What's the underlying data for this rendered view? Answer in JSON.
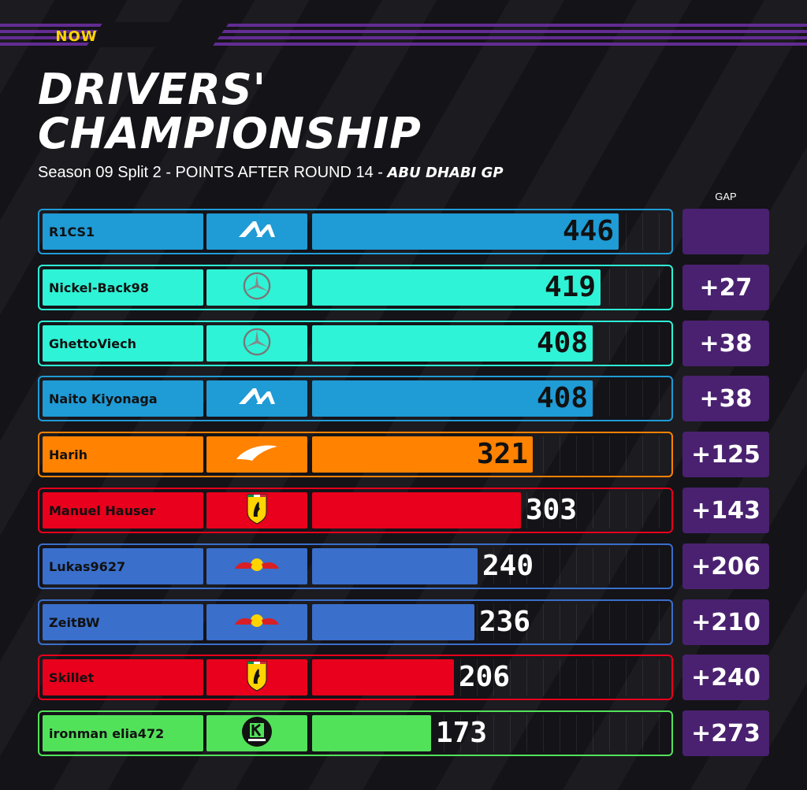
{
  "header": {
    "logo_text": "NOW",
    "title_line1": "DRIVERS'",
    "title_line2": "CHAMPIONSHIP",
    "subtitle_main": "Season 09 Split 2 - POINTS AFTER ROUND 14 - ",
    "subtitle_event": "ABU DHABI GP",
    "gap_label": "GAP"
  },
  "colors": {
    "alpine": "#1f9bd6",
    "mercedes": "#2ef3d6",
    "mclaren": "#ff8200",
    "ferrari": "#e8001c",
    "redbull": "#3a6fcb",
    "sauber": "#52e25a",
    "gap_bg": "#4a2170"
  },
  "chart_data": {
    "type": "bar",
    "orientation": "horizontal",
    "title": "DRIVERS' CHAMPIONSHIP",
    "subtitle": "Season 09 Split 2 - POINTS AFTER ROUND 14 - ABU DHABI GP",
    "xlim": [
      0,
      520
    ],
    "rows": [
      {
        "driver": "R1CS1",
        "team_icon": "alpine-logo-icon",
        "team": "alpine",
        "points": 446,
        "gap": ""
      },
      {
        "driver": "Nickel-Back98",
        "team_icon": "mercedes-star-icon",
        "team": "mercedes",
        "points": 419,
        "gap": "+27"
      },
      {
        "driver": "GhettoViech",
        "team_icon": "mercedes-star-icon",
        "team": "mercedes",
        "points": 408,
        "gap": "+38"
      },
      {
        "driver": "Naito Kiyonaga",
        "team_icon": "alpine-logo-icon",
        "team": "alpine",
        "points": 408,
        "gap": "+38"
      },
      {
        "driver": "Harih",
        "team_icon": "mclaren-swoosh-icon",
        "team": "mclaren",
        "points": 321,
        "gap": "+125"
      },
      {
        "driver": "Manuel Hauser",
        "team_icon": "ferrari-shield-icon",
        "team": "ferrari",
        "points": 303,
        "gap": "+143"
      },
      {
        "driver": "Lukas9627",
        "team_icon": "redbull-bulls-icon",
        "team": "redbull",
        "points": 240,
        "gap": "+206"
      },
      {
        "driver": "ZeitBW",
        "team_icon": "redbull-bulls-icon",
        "team": "redbull",
        "points": 236,
        "gap": "+210"
      },
      {
        "driver": "Skillet",
        "team_icon": "ferrari-shield-icon",
        "team": "ferrari",
        "points": 206,
        "gap": "+240"
      },
      {
        "driver": "ironman elia472",
        "team_icon": "sauber-k-icon",
        "team": "sauber",
        "points": 173,
        "gap": "+273"
      }
    ]
  }
}
